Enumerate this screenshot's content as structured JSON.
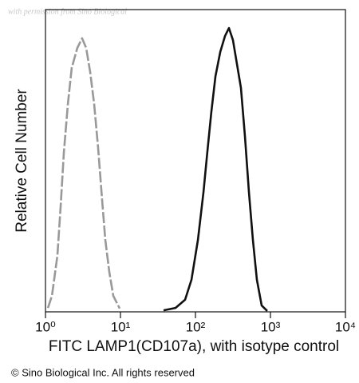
{
  "chart_data": {
    "type": "line",
    "watermark": "with permission from Sino Biological",
    "y_label": "Relative Cell Number",
    "x_label": "FITC LAMP1(CD107a), with isotype control",
    "footer": "© Sino Biological Inc. All rights reserved",
    "x_scale": "log",
    "xlim": [
      1,
      10000
    ],
    "xticks": [
      {
        "value": 1,
        "label": "10⁰"
      },
      {
        "value": 10,
        "label": "10¹"
      },
      {
        "value": 100,
        "label": "10²"
      },
      {
        "value": 1000,
        "label": "10³"
      },
      {
        "value": 10000,
        "label": "10⁴"
      }
    ],
    "ylim": [
      0,
      100
    ],
    "series": [
      {
        "color": "#999999",
        "line_style": "dashed",
        "x": [
          1.08,
          1.22,
          1.44,
          1.59,
          1.76,
          1.99,
          2.24,
          2.66,
          3.08,
          3.49,
          3.94,
          4.46,
          5.04,
          5.69,
          6.28,
          7.1,
          8.02,
          9.75
        ],
        "values": [
          1.3,
          5.3,
          18.5,
          34.4,
          52.9,
          68.8,
          80.7,
          87.3,
          90.5,
          87.3,
          79.4,
          68.8,
          54.2,
          37,
          23.8,
          13.2,
          5.3,
          1.1
        ]
      },
      {
        "color": "#111111",
        "line_style": "solid",
        "x": [
          37.5,
          54.2,
          72.8,
          88.5,
          108,
          128,
          144,
          163,
          185,
          214,
          248,
          280,
          316,
          357,
          404,
          457,
          516,
          584,
          659,
          764,
          906
        ],
        "values": [
          0.5,
          1.3,
          4,
          10.6,
          23.8,
          39.7,
          52.9,
          66.1,
          78,
          86,
          91.3,
          93.9,
          89.9,
          82,
          74.1,
          58.2,
          39.7,
          23.8,
          10.6,
          2.1,
          0.3
        ]
      }
    ]
  }
}
